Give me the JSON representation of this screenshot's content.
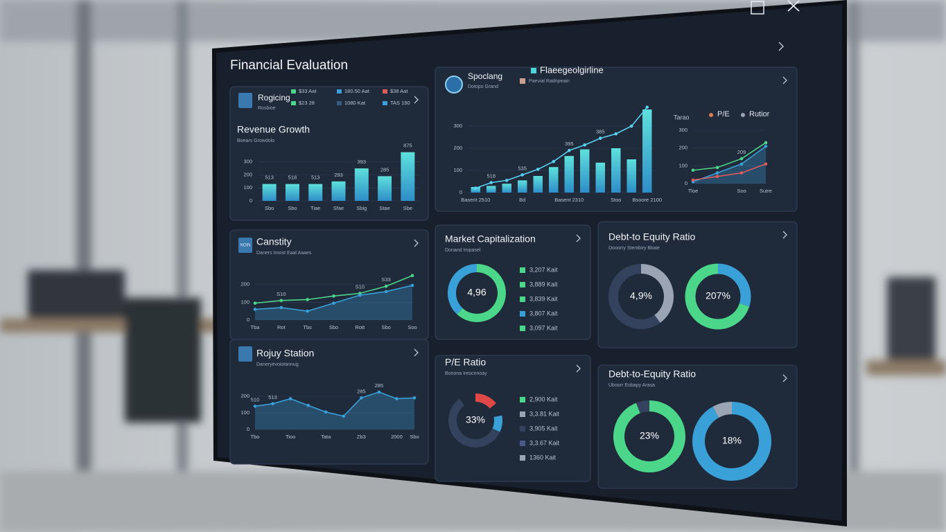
{
  "title": "Financial Evaluation",
  "panels": [
    {
      "header": "Rogicing",
      "header_sub": "Rosbioe",
      "legend": [
        {
          "label": "$33 Aat",
          "color": "#4cd68a"
        },
        {
          "label": "180.50 Aat",
          "color": "#3aa0d8"
        },
        {
          "label": "$38 Aat",
          "color": "#e05a5a"
        },
        {
          "label": "$23 28",
          "color": "#4cd68a"
        },
        {
          "label": "1080 Kat",
          "color": "#3a5a80"
        },
        {
          "label": "TAS 190",
          "color": "#3aa0d8"
        }
      ],
      "title": "Revenue Growth",
      "subtitle": "Boears Growdolo",
      "chart": {
        "type": "bar",
        "categories": [
          "Sbo",
          "Sbo",
          "Tiae",
          "Sfae",
          "Sbig",
          "Stae",
          "Sbe"
        ],
        "values": [
          130,
          130,
          130,
          150,
          250,
          190,
          375
        ],
        "notes": [
          "513",
          "518",
          "513",
          "293",
          "393",
          "285",
          "875"
        ],
        "color": "#4fd6d8",
        "ylim": [
          0,
          400
        ],
        "yticks": [
          0,
          100,
          200,
          300
        ],
        "grid": true
      }
    },
    {
      "header": "Spoclang",
      "header_sub": "Dotopo Grand",
      "legend": [
        {
          "label": "Flaeegeolgirline",
          "color": "#4fd6d8"
        },
        {
          "label": "Paevial Radnpeain",
          "color": "#c9a090"
        }
      ],
      "chart": {
        "type": "combo",
        "categories": [
          "Basent 2510",
          null,
          null,
          "Bd",
          null,
          null,
          "Basent 2310",
          null,
          null,
          "Stoo",
          null,
          "Bsoore 2100"
        ],
        "values": [
          25,
          30,
          40,
          55,
          75,
          115,
          165,
          195,
          135,
          200,
          150,
          375
        ],
        "notes": [
          null,
          "518",
          null,
          "535",
          null,
          null,
          "395",
          null,
          "385",
          null,
          null,
          null
        ],
        "color": "#4fd6d8",
        "series": [
          {
            "color": "#5ad0f0",
            "values": [
              20,
              45,
              55,
              80,
              105,
              140,
              190,
              215,
              245,
              265,
              300,
              385
            ]
          }
        ],
        "ylim": [
          0,
          400
        ],
        "yticks": [
          0,
          100,
          200,
          300
        ],
        "grid": true
      },
      "side_chart": {
        "type": "line",
        "label": "Tarao",
        "legend": [
          {
            "label": "P/E",
            "color": "#e07a50"
          },
          {
            "label": "Rutior",
            "color": "#9aa4b2"
          }
        ],
        "categories": [
          "Tloe",
          null,
          "Soo",
          "Sutre"
        ],
        "notes": [
          null,
          null,
          "209",
          null
        ],
        "series": [
          {
            "color": "#4cd68a",
            "values": [
              75,
              90,
              140,
              230
            ]
          },
          {
            "color": "#3aa0d8",
            "values": [
              10,
              60,
              110,
              210
            ],
            "area": true
          },
          {
            "color": "#e05a5a",
            "values": [
              20,
              40,
              60,
              110
            ]
          }
        ],
        "ylim": [
          0,
          300
        ],
        "yticks": [
          0,
          100,
          200,
          300
        ],
        "grid": true
      }
    },
    {
      "icon": "NOIN",
      "title": "Canstity",
      "subtitle": "Daners Iroost Eaal Aaaes",
      "chart": {
        "type": "line",
        "categories": [
          "Tba",
          "Rot",
          "Tbs",
          "Sbo",
          "Rott",
          "Sbo",
          "Soo"
        ],
        "notes": [
          null,
          "S10",
          null,
          null,
          "S10",
          "S33",
          null
        ],
        "series": [
          {
            "color": "#4cd68a",
            "values": [
              95,
              110,
              115,
              135,
              150,
              190,
              250
            ]
          },
          {
            "color": "#3aa0d8",
            "values": [
              60,
              70,
              50,
              95,
              140,
              160,
              195
            ],
            "area": true
          }
        ],
        "ylim": [
          0,
          300
        ],
        "yticks": [
          0,
          100,
          200
        ],
        "grid": true
      }
    },
    {
      "title": "Rojuy Station",
      "subtitle": "Daneryevoiotannug",
      "chart": {
        "type": "line",
        "categories": [
          "Tbo",
          null,
          "Tioo",
          null,
          "Tata",
          null,
          "Zb3",
          null,
          "2000",
          "Sbo"
        ],
        "notes": [
          "510",
          "513",
          null,
          null,
          null,
          null,
          "285",
          "285",
          null,
          null
        ],
        "series": [
          {
            "color": "#3aa0d8",
            "values": [
              140,
              155,
              185,
              145,
              105,
              80,
              190,
              225,
              185,
              190
            ],
            "area": true
          }
        ],
        "ylim": [
          0,
          300
        ],
        "yticks": [
          0,
          100,
          200
        ],
        "grid": true
      }
    },
    {
      "title": "Market Capitalization",
      "subtitle": "Donand Iropasel",
      "donuts": [
        {
          "center": "4,96",
          "values": [
            62,
            38
          ],
          "colors": [
            "#4cd68a",
            "#3aa0d8"
          ]
        }
      ],
      "legend": [
        {
          "label": "3,207 Kait",
          "color": "#4cd68a"
        },
        {
          "label": "3,889 Kait",
          "color": "#4cd68a"
        },
        {
          "label": "3,839 Kait",
          "color": "#4cd68a"
        },
        {
          "label": "3,807 Kait",
          "color": "#3aa0d8"
        },
        {
          "label": "3,097 Kait",
          "color": "#4cd68a"
        }
      ]
    },
    {
      "title": "Debt-to Equity Ratio",
      "subtitle": "Dooorry Stembiry Bkaie",
      "donuts": [
        {
          "center": "4,9%",
          "values": [
            40,
            60
          ],
          "colors": [
            "#9aa4b2",
            "#34425e"
          ]
        },
        {
          "center": "207%",
          "values": [
            30,
            70
          ],
          "colors": [
            "#3aa0d8",
            "#4cd68a"
          ]
        }
      ]
    },
    {
      "title": "P/E Ratio",
      "subtitle": "Bonona Ireocnnoay",
      "donuts": [
        {
          "center": "33%",
          "values": [
            14,
            8,
            10,
            58,
            10
          ],
          "colors": [
            "#e04848",
            "#1f2a3b",
            "#3aa0d8",
            "#34425e",
            "#1f2a3b"
          ]
        }
      ],
      "legend": [
        {
          "label": "2,900 Kait",
          "color": "#4cd68a"
        },
        {
          "label": "3,3.81 Kait",
          "color": "#9aa4b2"
        },
        {
          "label": "3,905 Kait",
          "color": "#34425e"
        },
        {
          "label": "3,3.67 Kait",
          "color": "#4a5a88"
        },
        {
          "label": "1360 Kait",
          "color": "#9aa4b2"
        }
      ]
    },
    {
      "title": "Debt-to-Equity Ratio",
      "subtitle": "Uboorr Eobapy Arasa",
      "donuts": [
        {
          "center": "23%",
          "values": [
            94,
            6
          ],
          "colors": [
            "#4cd68a",
            "#34425e"
          ]
        },
        {
          "center": "18%",
          "values": [
            92,
            8
          ],
          "colors": [
            "#3aa0d8",
            "#9aa4b2"
          ]
        }
      ]
    }
  ]
}
